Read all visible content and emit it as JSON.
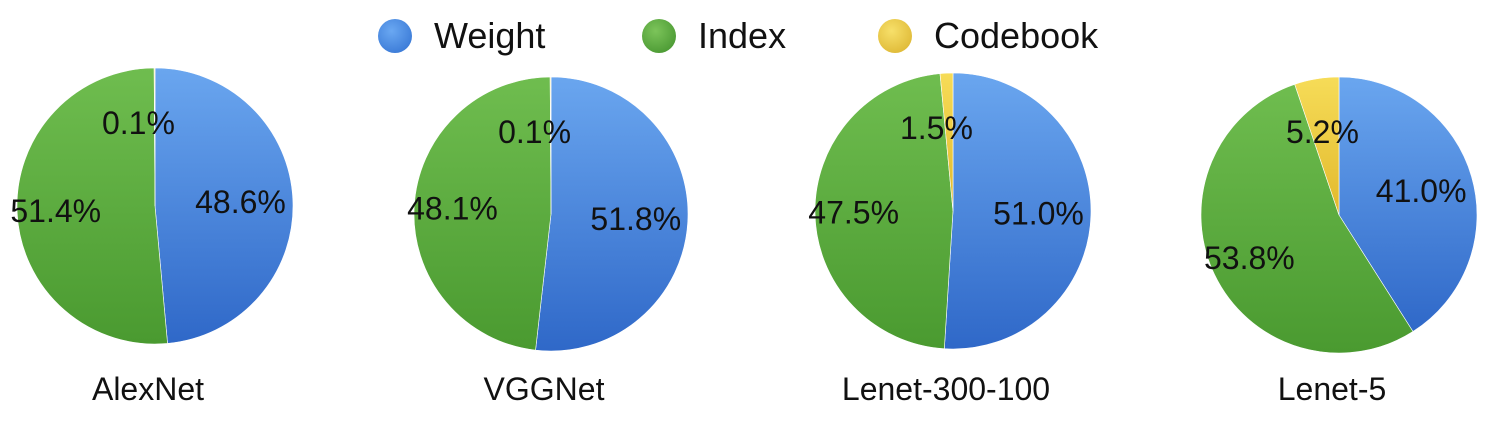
{
  "legend": {
    "items": [
      {
        "label": "Weight",
        "color": "#3f7fd8"
      },
      {
        "label": "Index",
        "color": "#5aab3c"
      },
      {
        "label": "Codebook",
        "color": "#f0cc3a"
      }
    ]
  },
  "chart_data": [
    {
      "type": "pie",
      "title": "AlexNet",
      "slices": [
        {
          "name": "Weight",
          "value": 48.6,
          "label": "48.6%"
        },
        {
          "name": "Index",
          "value": 51.4,
          "label": "51.4%"
        },
        {
          "name": "Codebook",
          "value": 0.1,
          "label": "0.1%"
        }
      ]
    },
    {
      "type": "pie",
      "title": "VGGNet",
      "slices": [
        {
          "name": "Weight",
          "value": 51.8,
          "label": "51.8%"
        },
        {
          "name": "Index",
          "value": 48.1,
          "label": "48.1%"
        },
        {
          "name": "Codebook",
          "value": 0.1,
          "label": "0.1%"
        }
      ]
    },
    {
      "type": "pie",
      "title": "Lenet-300-100",
      "slices": [
        {
          "name": "Weight",
          "value": 51.0,
          "label": "51.0%"
        },
        {
          "name": "Index",
          "value": 47.5,
          "label": "47.5%"
        },
        {
          "name": "Codebook",
          "value": 1.5,
          "label": "1.5%"
        }
      ]
    },
    {
      "type": "pie",
      "title": "Lenet-5",
      "slices": [
        {
          "name": "Weight",
          "value": 41.0,
          "label": "41.0%"
        },
        {
          "name": "Index",
          "value": 53.8,
          "label": "53.8%"
        },
        {
          "name": "Codebook",
          "value": 5.2,
          "label": "5.2%"
        }
      ]
    }
  ]
}
